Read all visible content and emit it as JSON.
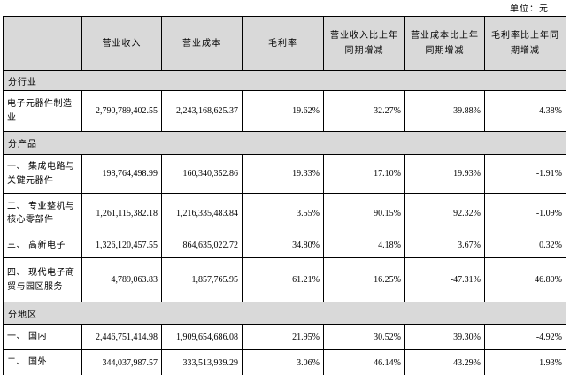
{
  "meta": {
    "unit_label": "单位：元"
  },
  "table": {
    "headers": [
      "",
      "营业收入",
      "营业成本",
      "毛利率",
      "营业收入比上年同期增减",
      "营业成本比上年同期增减",
      "毛利率比上年同期增减"
    ],
    "rows": [
      {
        "type": "section",
        "label": "分行业"
      },
      {
        "type": "data",
        "label": "电子元器件制造业",
        "values": [
          "2,790,789,402.55",
          "2,243,168,625.37",
          "19.62%",
          "32.27%",
          "39.88%",
          "-4.38%"
        ]
      },
      {
        "type": "section",
        "label": "分产品"
      },
      {
        "type": "data",
        "label": "一、 集成电路与关键元器件",
        "values": [
          "198,764,498.99",
          "160,340,352.86",
          "19.33%",
          "17.10%",
          "19.93%",
          "-1.91%"
        ]
      },
      {
        "type": "data",
        "label": "二、 专业整机与核心零部件",
        "values": [
          "1,261,115,382.18",
          "1,216,335,483.84",
          "3.55%",
          "90.15%",
          "92.32%",
          "-1.09%"
        ]
      },
      {
        "type": "data",
        "label": "三、 高新电子",
        "values": [
          "1,326,120,457.55",
          "864,635,022.72",
          "34.80%",
          "4.18%",
          "3.67%",
          "0.32%"
        ]
      },
      {
        "type": "data",
        "label": "四、 现代电子商贸与园区服务",
        "values": [
          "4,789,063.83",
          "1,857,765.95",
          "61.21%",
          "16.25%",
          "-47.31%",
          "46.80%"
        ]
      },
      {
        "type": "section",
        "label": "分地区"
      },
      {
        "type": "data",
        "label": "一、 国内",
        "values": [
          "2,446,751,414.98",
          "1,909,654,686.08",
          "21.95%",
          "30.52%",
          "39.30%",
          "-4.92%"
        ]
      },
      {
        "type": "data",
        "label": "二、 国外",
        "values": [
          "344,037,987.57",
          "333,513,939.29",
          "3.06%",
          "46.14%",
          "43.29%",
          "1.93%"
        ]
      }
    ],
    "colors": {
      "header_bg": "#d9d9d9",
      "section_bg": "#d9d9d9",
      "border": "#000000",
      "row_bg": "#ffffff"
    }
  }
}
